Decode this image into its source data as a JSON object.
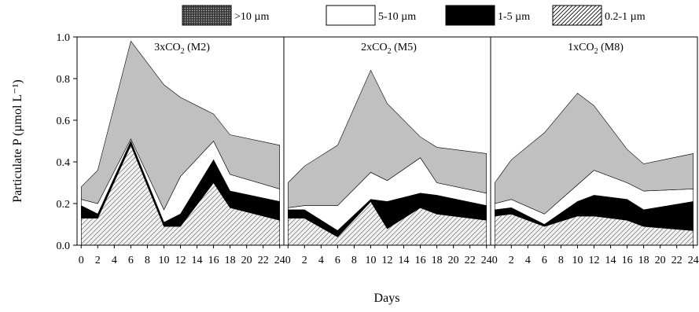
{
  "chart_data": {
    "type": "area",
    "stacked": true,
    "ylabel": "Particulate P (µmol L⁻¹)",
    "xlabel": "Days",
    "ylim": [
      0,
      1.0
    ],
    "yticks": [
      0.0,
      0.2,
      0.4,
      0.6,
      0.8,
      1.0
    ],
    "ytick_labels": [
      "0.0",
      "0.2",
      "0.4",
      "0.6",
      "0.8",
      "1.0"
    ],
    "xlim": [
      -0.5,
      24.5
    ],
    "xticks": [
      0,
      2,
      4,
      6,
      8,
      10,
      12,
      14,
      16,
      18,
      20,
      22,
      24
    ],
    "xtick_labels": [
      "0",
      "2",
      "4",
      "6",
      "8",
      "10",
      "12",
      "14",
      "16",
      "18",
      "20",
      "22",
      "24"
    ],
    "legend_position": "top-center",
    "legend": [
      {
        "label": ">10 µm",
        "fill": "dotted-dark",
        "color": "#5a5a5a"
      },
      {
        "label": "5-10 µm",
        "fill": "white",
        "color": "#ffffff"
      },
      {
        "label": "1-5 µm",
        "fill": "black",
        "color": "#000000"
      },
      {
        "label": "0.2-1 µm",
        "fill": "hatched",
        "color": "#000000"
      }
    ],
    "layer_colors": {
      "l02_1": "#f2f2f2",
      "l1_5": "#000000",
      "l5_10": "#ffffff",
      "l10": "#c0c0c0"
    },
    "panels": [
      {
        "title_main": "3xCO",
        "title_sub": "2",
        "title_tail": " (M2)",
        "days": [
          0,
          2,
          6,
          10,
          12,
          16,
          18,
          24
        ],
        "layers": {
          "l02_1": [
            0.13,
            0.13,
            0.48,
            0.09,
            0.09,
            0.3,
            0.18,
            0.12
          ],
          "l1_5": [
            0.06,
            0.02,
            0.02,
            0.02,
            0.06,
            0.11,
            0.08,
            0.09
          ],
          "l5_10": [
            0.03,
            0.05,
            0.01,
            0.06,
            0.18,
            0.09,
            0.08,
            0.06
          ],
          "l10": [
            0.06,
            0.16,
            0.47,
            0.6,
            0.38,
            0.13,
            0.19,
            0.21
          ]
        }
      },
      {
        "title_main": "2xCO",
        "title_sub": "2",
        "title_tail": " (M5)",
        "days": [
          0,
          2,
          6,
          10,
          12,
          16,
          18,
          24
        ],
        "layers": {
          "l02_1": [
            0.13,
            0.13,
            0.04,
            0.21,
            0.08,
            0.18,
            0.15,
            0.12
          ],
          "l1_5": [
            0.04,
            0.04,
            0.03,
            0.01,
            0.13,
            0.07,
            0.09,
            0.07
          ],
          "l5_10": [
            0.01,
            0.02,
            0.12,
            0.13,
            0.1,
            0.17,
            0.06,
            0.06
          ],
          "l10": [
            0.12,
            0.19,
            0.29,
            0.49,
            0.37,
            0.1,
            0.17,
            0.19
          ]
        }
      },
      {
        "title_main": "1xCO",
        "title_sub": "2",
        "title_tail": " (M8)",
        "days": [
          0,
          2,
          6,
          10,
          12,
          16,
          18,
          24
        ],
        "layers": {
          "l02_1": [
            0.14,
            0.15,
            0.09,
            0.14,
            0.14,
            0.12,
            0.09,
            0.07
          ],
          "l1_5": [
            0.03,
            0.03,
            0.01,
            0.07,
            0.1,
            0.1,
            0.08,
            0.14
          ],
          "l5_10": [
            0.03,
            0.04,
            0.05,
            0.08,
            0.12,
            0.08,
            0.09,
            0.06
          ],
          "l10": [
            0.1,
            0.19,
            0.39,
            0.44,
            0.31,
            0.16,
            0.13,
            0.17
          ]
        }
      }
    ]
  }
}
